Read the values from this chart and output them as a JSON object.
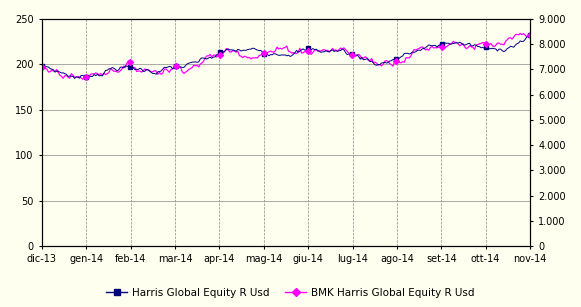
{
  "background_color": "#FFFFF0",
  "plot_bg_color": "#FFFFF0",
  "x_labels": [
    "dic-13",
    "gen-14",
    "feb-14",
    "mar-14",
    "apr-14",
    "mag-14",
    "giu-14",
    "lug-14",
    "ago-14",
    "set-14",
    "ott-14",
    "nov-14"
  ],
  "left_ylim": [
    0,
    250
  ],
  "right_ylim": [
    0,
    9000
  ],
  "left_yticks": [
    0,
    50,
    100,
    150,
    200,
    250
  ],
  "right_yticks": [
    0,
    1000,
    2000,
    3000,
    4000,
    5000,
    6000,
    7000,
    8000,
    9000
  ],
  "right_yticklabels": [
    "0",
    "1.000",
    "2.000",
    "3.000",
    "4.000",
    "5.000",
    "6.000",
    "7.000",
    "8.000",
    "9.000"
  ],
  "line1_color": "#000080",
  "line2_color": "#FF00FF",
  "line1_label": "Harris Global Equity R Usd",
  "line2_label": "BMK Harris Global Equity R Usd",
  "line1_marker": "s",
  "line2_marker": "D",
  "grid_color": "#888888",
  "axis_color": "#000000",
  "font_size": 7.0,
  "legend_font_size": 7.5,
  "keypoints1": [
    198,
    185,
    197,
    193,
    199,
    215,
    215,
    215,
    215,
    201,
    215,
    225,
    215,
    229
  ],
  "keypoints2": [
    197,
    185,
    198,
    194,
    200,
    215,
    214,
    217,
    216,
    201,
    216,
    226,
    217,
    230
  ],
  "noise_scale1": 1.2,
  "noise_scale2": 1.8,
  "n_points": 300
}
